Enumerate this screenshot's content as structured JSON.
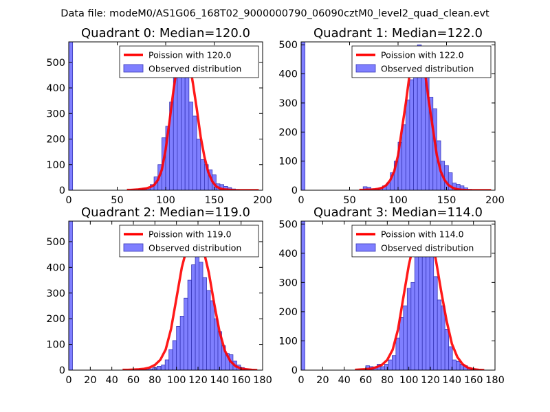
{
  "figure": {
    "suptitle": "Data file: modeM0/AS1G06_168T02_9000000790_06090cztM0_level2_quad_clean.evt",
    "colors": {
      "bar_fill": "#7f7fff",
      "bar_edge": "#3636b8",
      "line": "#ff0000",
      "axis": "#000000"
    }
  },
  "chart_data": [
    {
      "type": "bar",
      "title": "Quadrant 0: Median=120.0",
      "median": 120.0,
      "xlim": [
        0,
        200
      ],
      "ylim": [
        0,
        580
      ],
      "xticks": [
        "0",
        "50",
        "100",
        "150",
        "200"
      ],
      "yticks": [
        "0",
        "100",
        "200",
        "300",
        "400",
        "500"
      ],
      "legend": {
        "position": "top-right",
        "line_label": "Poission with 120.0",
        "bar_label": "Observed distribution"
      },
      "bin_width": 4,
      "bins": [
        0,
        64,
        68,
        72,
        76,
        80,
        84,
        88,
        92,
        96,
        100,
        104,
        108,
        112,
        116,
        120,
        124,
        128,
        132,
        136,
        140,
        144,
        148,
        152,
        156,
        160,
        164,
        168,
        172
      ],
      "counts": [
        580,
        3,
        2,
        5,
        8,
        5,
        22,
        52,
        100,
        205,
        250,
        345,
        440,
        520,
        490,
        440,
        345,
        290,
        200,
        120,
        100,
        80,
        60,
        25,
        22,
        15,
        10,
        5,
        3
      ],
      "curve_x": [
        60,
        64,
        68,
        72,
        76,
        80,
        84,
        88,
        92,
        96,
        100,
        104,
        108,
        112,
        116,
        120,
        124,
        128,
        132,
        136,
        140,
        144,
        148,
        152,
        156,
        160,
        164,
        168,
        172,
        176,
        180,
        184,
        188,
        192,
        196
      ],
      "curve_y": [
        1,
        1,
        2,
        3,
        5,
        7,
        12,
        20,
        40,
        80,
        160,
        270,
        390,
        490,
        545,
        550,
        510,
        420,
        320,
        210,
        130,
        70,
        35,
        15,
        7,
        3,
        2,
        1,
        0,
        0,
        0,
        0,
        0,
        0,
        0
      ]
    },
    {
      "type": "bar",
      "title": "Quadrant 1: Median=122.0",
      "median": 122.0,
      "xlim": [
        0,
        200
      ],
      "ylim": [
        0,
        510
      ],
      "xticks": [
        "0",
        "50",
        "100",
        "150",
        "200"
      ],
      "yticks": [
        "0",
        "100",
        "200",
        "300",
        "400",
        "500"
      ],
      "legend": {
        "position": "top-right",
        "line_label": "Poission with 122.0",
        "bar_label": "Observed distribution"
      },
      "bin_width": 4,
      "bins": [
        0,
        64,
        68,
        72,
        76,
        80,
        84,
        88,
        92,
        96,
        100,
        104,
        108,
        112,
        116,
        120,
        124,
        128,
        132,
        136,
        140,
        144,
        148,
        152,
        156,
        160,
        164,
        168,
        172
      ],
      "counts": [
        510,
        12,
        10,
        5,
        5,
        8,
        15,
        25,
        60,
        100,
        165,
        225,
        310,
        380,
        420,
        500,
        480,
        400,
        320,
        280,
        170,
        100,
        85,
        60,
        25,
        20,
        15,
        8,
        3
      ],
      "curve_x": [
        60,
        64,
        68,
        72,
        76,
        80,
        84,
        88,
        92,
        96,
        100,
        104,
        108,
        112,
        116,
        120,
        124,
        128,
        132,
        136,
        140,
        144,
        148,
        152,
        156,
        160,
        164,
        168,
        172,
        176,
        180,
        184,
        188,
        192,
        196
      ],
      "curve_y": [
        1,
        1,
        2,
        2,
        3,
        5,
        9,
        18,
        35,
        65,
        120,
        210,
        300,
        400,
        470,
        490,
        470,
        400,
        300,
        210,
        120,
        65,
        35,
        18,
        9,
        4,
        2,
        1,
        0,
        0,
        0,
        0,
        0,
        0,
        0
      ]
    },
    {
      "type": "bar",
      "title": "Quadrant 2: Median=119.0",
      "median": 119.0,
      "xlim": [
        0,
        180
      ],
      "ylim": [
        0,
        580
      ],
      "xticks": [
        "0",
        "20",
        "40",
        "60",
        "80",
        "100",
        "120",
        "140",
        "160",
        "180"
      ],
      "yticks": [
        "0",
        "100",
        "200",
        "300",
        "400",
        "500"
      ],
      "legend": {
        "position": "top-right",
        "line_label": "Poission with 119.0",
        "bar_label": "Observed distribution"
      },
      "bin_width": 3.5,
      "bins": [
        0,
        62,
        66,
        70,
        74,
        78,
        82,
        86,
        89.5,
        93,
        96.5,
        100,
        103.5,
        107,
        110.5,
        114,
        117.5,
        121,
        124.5,
        128,
        131.5,
        135,
        138.5,
        142,
        145.5,
        149,
        152.5,
        156,
        159.5,
        163,
        166.5
      ],
      "counts": [
        580,
        3,
        3,
        2,
        5,
        10,
        15,
        20,
        40,
        80,
        115,
        170,
        210,
        280,
        350,
        410,
        500,
        420,
        360,
        310,
        270,
        200,
        150,
        95,
        65,
        60,
        35,
        20,
        10,
        5,
        2
      ],
      "curve_x": [
        50,
        55,
        60,
        65,
        70,
        75,
        80,
        85,
        90,
        95,
        100,
        105,
        110,
        115,
        120,
        125,
        130,
        135,
        140,
        145,
        150,
        155,
        160,
        165,
        170,
        175
      ],
      "curve_y": [
        1,
        1,
        2,
        3,
        5,
        10,
        20,
        40,
        80,
        160,
        280,
        400,
        480,
        510,
        515,
        470,
        380,
        260,
        150,
        75,
        35,
        15,
        6,
        3,
        1,
        0
      ]
    },
    {
      "type": "bar",
      "title": "Quadrant 3: Median=114.0",
      "median": 114.0,
      "xlim": [
        0,
        180
      ],
      "ylim": [
        0,
        510
      ],
      "xticks": [
        "0",
        "20",
        "40",
        "60",
        "80",
        "100",
        "120",
        "140",
        "160",
        "180"
      ],
      "yticks": [
        "0",
        "100",
        "200",
        "300",
        "400",
        "500"
      ],
      "legend": {
        "position": "top-right",
        "line_label": "Poission with 114.0",
        "bar_label": "Observed distribution"
      },
      "bin_width": 3.5,
      "bins": [
        0,
        60,
        63.5,
        67,
        70.5,
        74,
        77.5,
        81,
        84.5,
        88,
        91.5,
        95,
        98.5,
        102,
        105.5,
        109,
        112.5,
        116,
        119.5,
        123,
        126.5,
        130,
        133.5,
        137,
        140.5,
        144,
        147.5,
        151,
        154.5,
        158,
        161.5
      ],
      "counts": [
        510,
        15,
        12,
        10,
        20,
        12,
        20,
        35,
        50,
        110,
        180,
        220,
        280,
        300,
        390,
        420,
        480,
        450,
        390,
        320,
        240,
        220,
        140,
        80,
        35,
        30,
        20,
        15,
        8,
        5,
        2
      ],
      "curve_x": [
        50,
        55,
        60,
        65,
        70,
        75,
        80,
        85,
        90,
        95,
        100,
        105,
        110,
        115,
        120,
        125,
        130,
        135,
        140,
        145,
        150,
        155,
        160,
        165,
        170
      ],
      "curve_y": [
        1,
        2,
        3,
        5,
        10,
        18,
        35,
        70,
        140,
        250,
        360,
        440,
        480,
        490,
        460,
        380,
        270,
        170,
        90,
        45,
        20,
        8,
        3,
        1,
        0
      ]
    }
  ]
}
